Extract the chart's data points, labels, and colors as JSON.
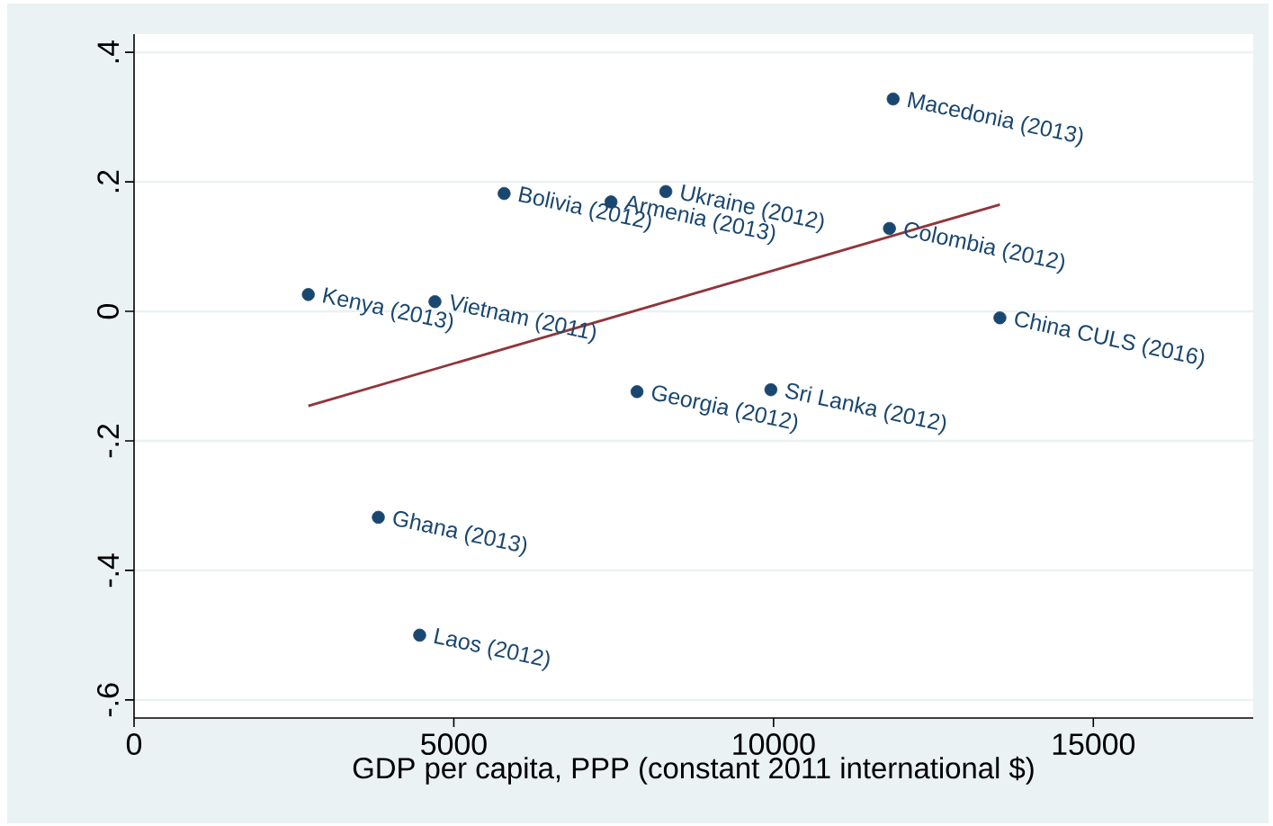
{
  "chart_data": {
    "type": "scatter",
    "xlabel": "GDP per capita, PPP (constant 2011 international $)",
    "xlim": [
      0,
      17500
    ],
    "xticks": [
      0,
      5000,
      10000,
      15000
    ],
    "ylim": [
      -0.628,
      0.428
    ],
    "yticks": [
      {
        "value": -0.6,
        "label": "-.6"
      },
      {
        "value": -0.4,
        "label": "-.4"
      },
      {
        "value": -0.2,
        "label": "-.2"
      },
      {
        "value": 0,
        "label": "0"
      },
      {
        "value": 0.2,
        "label": ".2"
      },
      {
        "value": 0.4,
        "label": ".4"
      }
    ],
    "grid": "y",
    "marker": "circle",
    "series": [
      {
        "color": "#1a476f",
        "x": [
          11870,
          8315,
          5787,
          7458,
          11812,
          2725,
          4705,
          13539,
          7865,
          9958,
          3820,
          4466
        ],
        "values": [
          0.328,
          0.185,
          0.182,
          0.169,
          0.128,
          0.026,
          0.015,
          -0.01,
          -0.124,
          -0.121,
          -0.318,
          -0.5
        ]
      },
      {
        "type": "line",
        "color": "#90353b",
        "marker": "none",
        "x": [
          2725,
          13539
        ],
        "values": [
          -0.146,
          0.165
        ]
      }
    ],
    "annotations": [
      {
        "text": "Macedonia (2013)",
        "x": 11870,
        "y": 0.328
      },
      {
        "text": "Ukraine (2012)",
        "x": 8315,
        "y": 0.185
      },
      {
        "text": "Bolivia (2012)",
        "x": 5787,
        "y": 0.182
      },
      {
        "text": "Armenia (2013)",
        "x": 7458,
        "y": 0.169
      },
      {
        "text": "Colombia (2012)",
        "x": 11812,
        "y": 0.128
      },
      {
        "text": "Kenya (2013)",
        "x": 2725,
        "y": 0.026
      },
      {
        "text": "Vietnam (2011)",
        "x": 4705,
        "y": 0.015
      },
      {
        "text": "China CULS (2016)",
        "x": 13539,
        "y": -0.01
      },
      {
        "text": "Georgia (2012)",
        "x": 7865,
        "y": -0.124
      },
      {
        "text": "Sri Lanka (2012)",
        "x": 9958,
        "y": -0.121
      },
      {
        "text": "Ghana (2013)",
        "x": 3820,
        "y": -0.318
      },
      {
        "text": "Laos (2012)",
        "x": 4466,
        "y": -0.5
      }
    ]
  }
}
